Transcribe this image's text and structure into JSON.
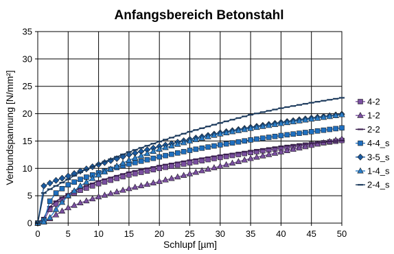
{
  "chart_data": {
    "type": "line",
    "title": "Anfangsbereich Betonstahl",
    "xlabel": "Schlupf [µm]",
    "ylabel": "Verbundspannung [N/mm²]",
    "xlim": [
      0,
      50
    ],
    "ylim": [
      0,
      35
    ],
    "x_ticks": [
      "0",
      "5",
      "10",
      "15",
      "20",
      "25",
      "30",
      "35",
      "40",
      "45",
      "50"
    ],
    "y_ticks": [
      "0",
      "5",
      "10",
      "15",
      "20",
      "25",
      "30",
      "35"
    ],
    "grid": true,
    "legend_position": "right",
    "series": [
      {
        "name": "4-2",
        "color": "#7a4fa0",
        "marker": "square",
        "points": [
          [
            0,
            0
          ],
          [
            1,
            0.5
          ],
          [
            2,
            2.5
          ],
          [
            3,
            3.5
          ],
          [
            4,
            4.3
          ],
          [
            5,
            5.0
          ],
          [
            7,
            6.0
          ],
          [
            10,
            7.2
          ],
          [
            15,
            8.8
          ],
          [
            20,
            10.0
          ],
          [
            25,
            11.0
          ],
          [
            30,
            12.0
          ],
          [
            35,
            12.9
          ],
          [
            40,
            13.7
          ],
          [
            45,
            14.4
          ],
          [
            50,
            15.1
          ]
        ]
      },
      {
        "name": "1-2",
        "color": "#7a4fa0",
        "marker": "triangle",
        "points": [
          [
            0,
            0
          ],
          [
            1,
            0.2
          ],
          [
            2,
            0.8
          ],
          [
            3,
            1.5
          ],
          [
            4,
            2.2
          ],
          [
            5,
            2.8
          ],
          [
            7,
            3.7
          ],
          [
            10,
            4.8
          ],
          [
            15,
            6.3
          ],
          [
            20,
            7.6
          ],
          [
            25,
            9.0
          ],
          [
            30,
            10.4
          ],
          [
            35,
            11.8
          ],
          [
            40,
            13.0
          ],
          [
            45,
            14.2
          ],
          [
            50,
            15.4
          ]
        ]
      },
      {
        "name": "2-2",
        "color": "#3b2050",
        "marker": "dash",
        "points": [
          [
            0,
            0
          ],
          [
            1,
            1.0
          ],
          [
            2,
            3.0
          ],
          [
            3,
            4.0
          ],
          [
            4,
            4.7
          ],
          [
            5,
            5.3
          ],
          [
            7,
            6.4
          ],
          [
            10,
            7.7
          ],
          [
            15,
            9.3
          ],
          [
            20,
            10.5
          ],
          [
            25,
            11.5
          ],
          [
            30,
            12.4
          ],
          [
            35,
            13.2
          ],
          [
            40,
            14.0
          ],
          [
            45,
            14.6
          ],
          [
            50,
            15.1
          ]
        ]
      },
      {
        "name": "4-4_s",
        "color": "#1f6fbf",
        "marker": "square",
        "points": [
          [
            0,
            0
          ],
          [
            1,
            0.5
          ],
          [
            2,
            4.0
          ],
          [
            3,
            5.5
          ],
          [
            4,
            6.3
          ],
          [
            5,
            7.0
          ],
          [
            7,
            8.0
          ],
          [
            10,
            9.2
          ],
          [
            15,
            10.8
          ],
          [
            20,
            12.1
          ],
          [
            25,
            13.3
          ],
          [
            30,
            14.3
          ],
          [
            35,
            15.2
          ],
          [
            40,
            16.0
          ],
          [
            45,
            16.7
          ],
          [
            50,
            17.4
          ]
        ]
      },
      {
        "name": "3-5_s",
        "color": "#1a5aa0",
        "marker": "diamond",
        "points": [
          [
            0,
            0
          ],
          [
            1,
            6.8
          ],
          [
            2,
            7.3
          ],
          [
            3,
            7.8
          ],
          [
            4,
            8.2
          ],
          [
            5,
            8.6
          ],
          [
            7,
            9.5
          ],
          [
            10,
            10.7
          ],
          [
            15,
            12.5
          ],
          [
            20,
            14.0
          ],
          [
            25,
            15.3
          ],
          [
            30,
            16.5
          ],
          [
            35,
            17.5
          ],
          [
            40,
            18.4
          ],
          [
            45,
            19.2
          ],
          [
            50,
            19.9
          ]
        ]
      },
      {
        "name": "1-4_s",
        "color": "#2a7dc8",
        "marker": "triangle",
        "points": [
          [
            0,
            0
          ],
          [
            1,
            0.2
          ],
          [
            2,
            1.0
          ],
          [
            3,
            2.5
          ],
          [
            4,
            3.8
          ],
          [
            5,
            5.0
          ],
          [
            7,
            6.8
          ],
          [
            10,
            8.8
          ],
          [
            15,
            11.5
          ],
          [
            20,
            13.5
          ],
          [
            25,
            15.0
          ],
          [
            30,
            16.3
          ],
          [
            35,
            17.3
          ],
          [
            40,
            18.2
          ],
          [
            45,
            19.0
          ],
          [
            50,
            19.8
          ]
        ]
      },
      {
        "name": "2-4_s",
        "color": "#1c3a5c",
        "marker": "dash",
        "points": [
          [
            0,
            0
          ],
          [
            1,
            5.5
          ],
          [
            2,
            6.2
          ],
          [
            3,
            6.8
          ],
          [
            4,
            7.4
          ],
          [
            5,
            8.0
          ],
          [
            7,
            9.3
          ],
          [
            10,
            10.8
          ],
          [
            15,
            13.0
          ],
          [
            20,
            14.9
          ],
          [
            25,
            16.7
          ],
          [
            30,
            18.3
          ],
          [
            35,
            19.8
          ],
          [
            40,
            21.0
          ],
          [
            45,
            22.0
          ],
          [
            50,
            22.9
          ]
        ]
      }
    ]
  }
}
